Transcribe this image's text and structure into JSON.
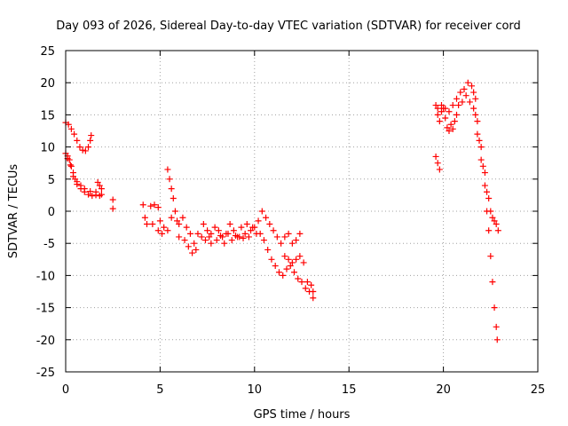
{
  "chart_data": {
    "type": "scatter",
    "title": "Day 093 of 2026, Sidereal Day-to-day VTEC variation (SDTVAR) for receiver cord",
    "xlabel": "GPS time / hours",
    "ylabel": "SDTVAR / TECUs",
    "xlim": [
      0,
      25
    ],
    "ylim": [
      -25,
      25
    ],
    "xticks": [
      0,
      5,
      10,
      15,
      20,
      25
    ],
    "yticks": [
      -25,
      -20,
      -15,
      -10,
      -5,
      0,
      5,
      10,
      15,
      20,
      25
    ],
    "grid": true,
    "marker": "+",
    "color": "#ff0000",
    "series": [
      {
        "name": "SDTVAR",
        "points": [
          [
            0.0,
            13.8
          ],
          [
            0.15,
            13.5
          ],
          [
            0.3,
            12.8
          ],
          [
            0.45,
            12.0
          ],
          [
            0.6,
            11.0
          ],
          [
            0.75,
            10.0
          ],
          [
            0.9,
            9.5
          ],
          [
            1.05,
            9.4
          ],
          [
            1.2,
            10.0
          ],
          [
            1.3,
            11.0
          ],
          [
            1.35,
            11.8
          ],
          [
            0.0,
            9.0
          ],
          [
            0.1,
            8.6
          ],
          [
            0.2,
            8.0
          ],
          [
            0.3,
            7.0
          ],
          [
            0.4,
            6.0
          ],
          [
            0.5,
            5.0
          ],
          [
            0.6,
            4.2
          ],
          [
            0.8,
            3.5
          ],
          [
            1.0,
            3.0
          ],
          [
            1.2,
            2.6
          ],
          [
            1.4,
            2.4
          ],
          [
            1.6,
            2.5
          ],
          [
            1.8,
            2.4
          ],
          [
            1.9,
            2.6
          ],
          [
            0.1,
            8.2
          ],
          [
            0.25,
            7.2
          ],
          [
            0.4,
            5.4
          ],
          [
            0.6,
            4.6
          ],
          [
            0.8,
            4.0
          ],
          [
            1.0,
            3.5
          ],
          [
            1.3,
            3.1
          ],
          [
            1.6,
            3.0
          ],
          [
            1.7,
            4.5
          ],
          [
            1.8,
            4.0
          ],
          [
            1.9,
            3.5
          ],
          [
            2.5,
            1.8
          ],
          [
            2.5,
            0.4
          ],
          [
            4.1,
            1.0
          ],
          [
            4.2,
            -1.0
          ],
          [
            4.3,
            -2.0
          ],
          [
            4.5,
            0.8
          ],
          [
            4.7,
            1.0
          ],
          [
            4.9,
            0.6
          ],
          [
            5.0,
            -1.5
          ],
          [
            5.2,
            -2.5
          ],
          [
            5.4,
            -3.0
          ],
          [
            5.6,
            -1.0
          ],
          [
            5.4,
            6.5
          ],
          [
            5.5,
            5.0
          ],
          [
            5.6,
            3.5
          ],
          [
            5.7,
            2.0
          ],
          [
            5.8,
            0.0
          ],
          [
            5.9,
            -1.5
          ],
          [
            4.6,
            -2.0
          ],
          [
            4.9,
            -3.0
          ],
          [
            5.1,
            -3.5
          ],
          [
            6.0,
            -2.0
          ],
          [
            6.2,
            -1.0
          ],
          [
            6.4,
            -2.5
          ],
          [
            6.6,
            -3.5
          ],
          [
            6.8,
            -5.0
          ],
          [
            7.0,
            -3.5
          ],
          [
            6.0,
            -4.0
          ],
          [
            6.3,
            -4.5
          ],
          [
            6.5,
            -5.5
          ],
          [
            6.7,
            -6.5
          ],
          [
            6.9,
            -6.0
          ],
          [
            7.3,
            -2.0
          ],
          [
            7.5,
            -3.0
          ],
          [
            7.7,
            -3.5
          ],
          [
            7.9,
            -2.5
          ],
          [
            8.1,
            -3.0
          ],
          [
            8.3,
            -4.0
          ],
          [
            8.5,
            -3.5
          ],
          [
            8.7,
            -2.0
          ],
          [
            8.9,
            -3.0
          ],
          [
            9.1,
            -4.0
          ],
          [
            7.4,
            -4.5
          ],
          [
            7.7,
            -5.0
          ],
          [
            8.0,
            -4.5
          ],
          [
            8.4,
            -5.0
          ],
          [
            8.8,
            -4.5
          ],
          [
            9.2,
            -4.0
          ],
          [
            9.5,
            -3.5
          ],
          [
            9.8,
            -3.0
          ],
          [
            10.0,
            -2.5
          ],
          [
            7.2,
            -4.0
          ],
          [
            7.6,
            -4.0
          ],
          [
            8.2,
            -3.8
          ],
          [
            8.6,
            -3.5
          ],
          [
            9.0,
            -3.8
          ],
          [
            9.4,
            -4.2
          ],
          [
            9.7,
            -4.0
          ],
          [
            10.1,
            -3.5
          ],
          [
            9.3,
            -2.5
          ],
          [
            9.6,
            -2.0
          ],
          [
            9.9,
            -2.5
          ],
          [
            10.2,
            -1.5
          ],
          [
            10.4,
            0.0
          ],
          [
            10.6,
            -1.0
          ],
          [
            10.8,
            -2.0
          ],
          [
            11.0,
            -3.0
          ],
          [
            11.2,
            -4.0
          ],
          [
            11.4,
            -5.0
          ],
          [
            10.3,
            -3.5
          ],
          [
            10.5,
            -4.5
          ],
          [
            10.7,
            -6.0
          ],
          [
            10.9,
            -7.5
          ],
          [
            11.1,
            -8.5
          ],
          [
            11.3,
            -9.5
          ],
          [
            11.5,
            -10.0
          ],
          [
            11.6,
            -7.0
          ],
          [
            11.8,
            -7.5
          ],
          [
            12.0,
            -8.0
          ],
          [
            12.2,
            -7.5
          ],
          [
            12.4,
            -7.0
          ],
          [
            12.6,
            -8.0
          ],
          [
            11.7,
            -9.0
          ],
          [
            11.9,
            -8.5
          ],
          [
            12.1,
            -9.5
          ],
          [
            12.3,
            -10.5
          ],
          [
            12.5,
            -11.0
          ],
          [
            12.7,
            -12.0
          ],
          [
            12.9,
            -12.5
          ],
          [
            13.1,
            -13.5
          ],
          [
            11.6,
            -4.0
          ],
          [
            11.8,
            -3.5
          ],
          [
            12.0,
            -5.0
          ],
          [
            12.2,
            -4.5
          ],
          [
            12.4,
            -3.5
          ],
          [
            12.8,
            -11.0
          ],
          [
            13.0,
            -11.5
          ],
          [
            13.1,
            -12.5
          ],
          [
            19.6,
            8.5
          ],
          [
            19.7,
            7.5
          ],
          [
            19.8,
            6.5
          ],
          [
            19.6,
            16.5
          ],
          [
            19.7,
            15.0
          ],
          [
            19.8,
            14.0
          ],
          [
            19.9,
            15.5
          ],
          [
            20.0,
            16.0
          ],
          [
            20.1,
            14.5
          ],
          [
            20.2,
            13.0
          ],
          [
            20.3,
            12.5
          ],
          [
            20.4,
            13.5
          ],
          [
            20.5,
            12.8
          ],
          [
            20.6,
            14.0
          ],
          [
            20.7,
            15.0
          ],
          [
            19.7,
            16.0
          ],
          [
            19.9,
            16.5
          ],
          [
            20.1,
            16.0
          ],
          [
            20.3,
            15.5
          ],
          [
            20.5,
            16.5
          ],
          [
            20.7,
            17.5
          ],
          [
            20.9,
            18.5
          ],
          [
            21.1,
            19.0
          ],
          [
            21.3,
            20.0
          ],
          [
            21.5,
            19.5
          ],
          [
            21.6,
            18.5
          ],
          [
            21.7,
            17.5
          ],
          [
            20.8,
            16.5
          ],
          [
            21.0,
            17.0
          ],
          [
            21.2,
            18.0
          ],
          [
            21.4,
            17.0
          ],
          [
            21.6,
            16.0
          ],
          [
            21.8,
            14.0
          ],
          [
            22.0,
            10.0
          ],
          [
            22.2,
            6.0
          ],
          [
            22.4,
            2.0
          ],
          [
            22.6,
            -1.0
          ],
          [
            22.8,
            -2.0
          ],
          [
            21.7,
            15.0
          ],
          [
            21.9,
            11.0
          ],
          [
            22.1,
            7.0
          ],
          [
            22.3,
            3.0
          ],
          [
            22.5,
            0.0
          ],
          [
            22.7,
            -1.5
          ],
          [
            22.9,
            -3.0
          ],
          [
            21.8,
            12.0
          ],
          [
            22.0,
            8.0
          ],
          [
            22.2,
            4.0
          ],
          [
            22.3,
            0.0
          ],
          [
            22.4,
            -3.0
          ],
          [
            22.5,
            -7.0
          ],
          [
            22.6,
            -11.0
          ],
          [
            22.7,
            -15.0
          ],
          [
            22.8,
            -18.0
          ],
          [
            22.85,
            -20.0
          ]
        ]
      }
    ]
  }
}
